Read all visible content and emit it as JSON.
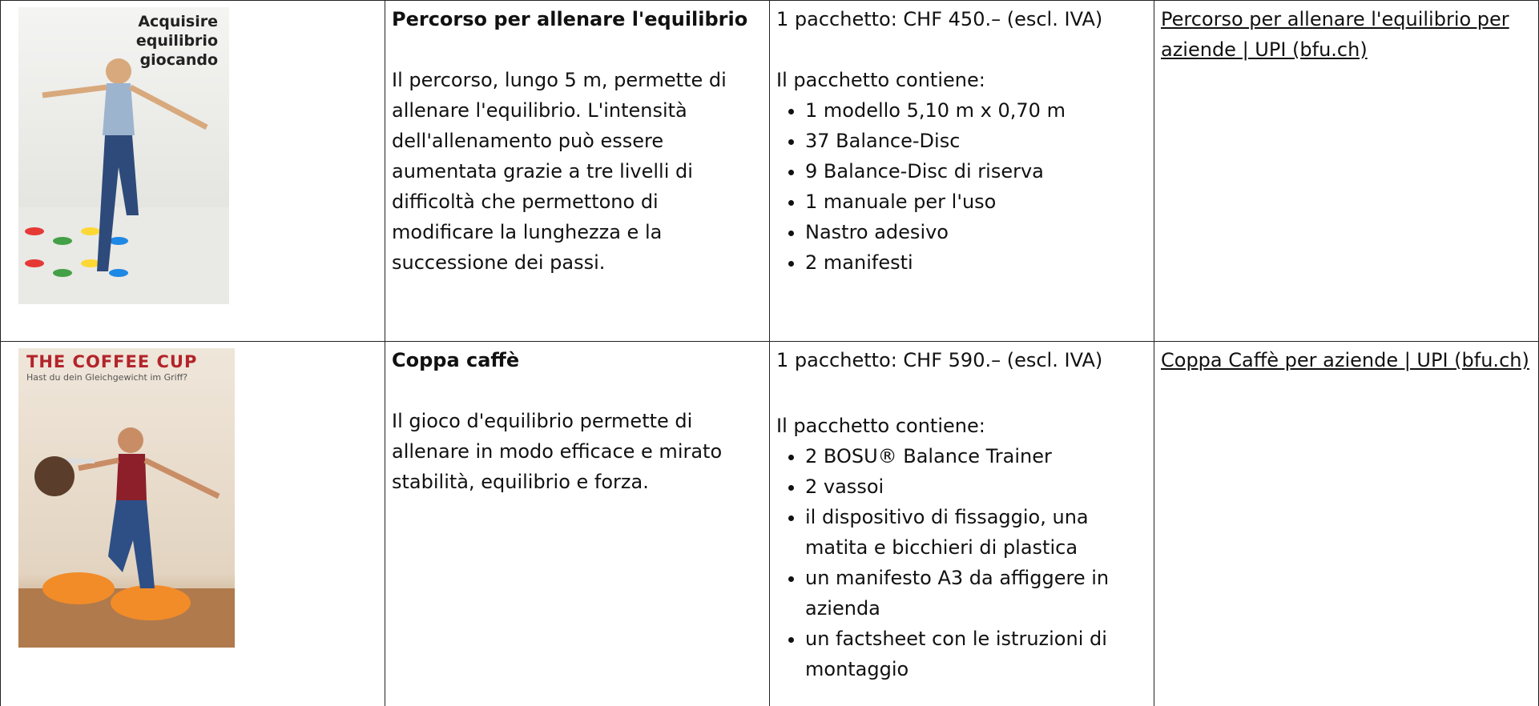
{
  "table": {
    "rows": [
      {
        "image": {
          "title": "Acquisire equilibrio giocando"
        },
        "product": {
          "name": "Percorso per allenare l'equilibrio",
          "description": "Il percorso, lungo 5 m, permette di allenare l'equilibrio. L'intensità dell'allenamento può essere aumentata grazie a tre livelli di difficoltà che permettono di modificare la lunghezza e la successione dei passi."
        },
        "package": {
          "price": "1 pacchetto: CHF 450.– (escl. IVA)",
          "intro": "Il pacchetto contiene:",
          "items": [
            "1 modello 5,10 m x 0,70 m",
            "37 Balance-Disc",
            "9 Balance-Disc di riserva",
            "1 manuale per l'uso",
            "Nastro adesivo",
            "2 manifesti"
          ]
        },
        "link": "Percorso per allenare l'equilibrio per aziende | UPI (bfu.ch)"
      },
      {
        "image": {
          "title": "THE COFFEE CUP",
          "subtitle": "Hast du dein Gleichgewicht im Griff?"
        },
        "product": {
          "name": "Coppa caffè",
          "description": "Il gioco d'equilibrio permette di allenare in modo efficace e mirato stabilità, equilibrio e forza."
        },
        "package": {
          "price": "1 pacchetto: CHF 590.– (escl. IVA)",
          "intro": "Il pacchetto contiene:",
          "items": [
            "2 BOSU® Balance Trainer",
            "2 vassoi",
            "il dispositivo di fissaggio, una matita e bicchieri di plastica",
            "un manifesto A3 da affiggere in azienda",
            "un factsheet con le istruzioni di montaggio"
          ]
        },
        "link": "Coppa Caffè per aziende | UPI (bfu.ch)"
      }
    ]
  }
}
